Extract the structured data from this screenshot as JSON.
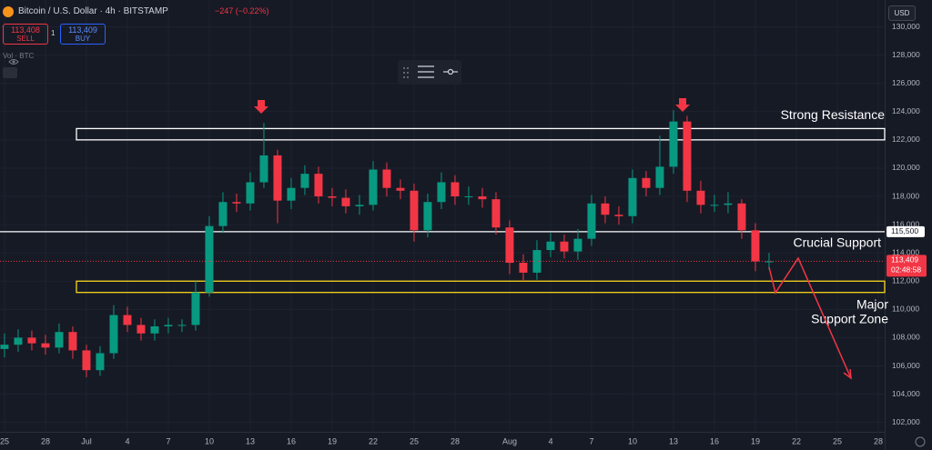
{
  "header": {
    "symbol": "Bitcoin / U.S. Dollar · 4h · BITSTAMP",
    "change": "−247 (−0.22%)",
    "sell_price": "113,408",
    "sell_label": "SELL",
    "spread": "1",
    "buy_price": "113,409",
    "buy_label": "BUY",
    "volume_label": "Vol · BTC",
    "currency": "USD"
  },
  "chart_data": {
    "type": "candlestick",
    "x": [
      0,
      1,
      2,
      3,
      4,
      5,
      6,
      7,
      8,
      9,
      10,
      11,
      12,
      13,
      14,
      15,
      16,
      17,
      18,
      19,
      20,
      21,
      22,
      23,
      24,
      25,
      26,
      27,
      28,
      29,
      30,
      31,
      32,
      33,
      34,
      35,
      36,
      37,
      38,
      39,
      40,
      41,
      42,
      43,
      44,
      45,
      46,
      47,
      48,
      49,
      50,
      51,
      52,
      53,
      54,
      55,
      56
    ],
    "open": [
      107200,
      107500,
      108000,
      107600,
      107300,
      108400,
      107100,
      105700,
      106900,
      109600,
      108900,
      108300,
      108800,
      108900,
      108900,
      111200,
      115900,
      117600,
      117500,
      119000,
      120900,
      117700,
      118600,
      119600,
      118000,
      117900,
      117300,
      117400,
      119900,
      118600,
      118400,
      115600,
      117600,
      119000,
      118000,
      118000,
      117800,
      115800,
      113300,
      112600,
      114200,
      114800,
      114100,
      115000,
      117500,
      116700,
      116600,
      119300,
      118600,
      120100,
      123300,
      118400,
      117400,
      117400,
      117500,
      115600,
      113400
    ],
    "high": [
      108300,
      108600,
      108500,
      108200,
      109000,
      108800,
      107500,
      107400,
      110300,
      110200,
      109400,
      109300,
      109400,
      109300,
      112000,
      116600,
      118300,
      118200,
      119700,
      123200,
      121300,
      119300,
      120200,
      120100,
      118600,
      118500,
      118100,
      120500,
      120400,
      119200,
      118900,
      118200,
      119700,
      119500,
      118700,
      118600,
      118300,
      116300,
      113900,
      114900,
      115400,
      115300,
      115700,
      118100,
      118000,
      117300,
      119900,
      119800,
      122300,
      124100,
      123700,
      119100,
      118100,
      118300,
      117800,
      116100,
      114000
    ],
    "low": [
      106600,
      107000,
      107100,
      106800,
      106900,
      106500,
      105200,
      105300,
      106500,
      108400,
      107800,
      107800,
      108300,
      108400,
      108500,
      110900,
      115400,
      116900,
      117000,
      118600,
      116100,
      117100,
      118100,
      117500,
      117300,
      116800,
      116700,
      117000,
      118000,
      117800,
      114800,
      115100,
      117100,
      117400,
      117400,
      117200,
      115300,
      112500,
      112000,
      112100,
      113700,
      113600,
      113500,
      114500,
      116100,
      116000,
      116100,
      118000,
      118100,
      119600,
      117600,
      116800,
      116900,
      116800,
      115000,
      112700,
      112800
    ],
    "close": [
      107500,
      108000,
      107600,
      107300,
      108400,
      107100,
      105700,
      106900,
      109600,
      108900,
      108300,
      108800,
      108900,
      108900,
      111200,
      115900,
      117600,
      117500,
      119000,
      120900,
      117700,
      118600,
      119600,
      118000,
      117900,
      117300,
      117400,
      119900,
      118600,
      118400,
      115600,
      117600,
      119000,
      118000,
      118000,
      117800,
      115800,
      113300,
      112600,
      114200,
      114800,
      114100,
      115000,
      117500,
      116700,
      116600,
      119300,
      118600,
      120100,
      123300,
      118400,
      117400,
      117400,
      117500,
      115600,
      113400,
      113400
    ],
    "up_color": "#089981",
    "down_color": "#f23645",
    "xlim": [
      -0.33,
      64.47
    ],
    "xticks": [
      {
        "value": 0,
        "label": "25"
      },
      {
        "value": 3,
        "label": "28"
      },
      {
        "value": 6,
        "label": "Jul"
      },
      {
        "value": 9,
        "label": "4"
      },
      {
        "value": 12,
        "label": "7"
      },
      {
        "value": 15,
        "label": "10"
      },
      {
        "value": 18,
        "label": "13"
      },
      {
        "value": 21,
        "label": "16"
      },
      {
        "value": 24,
        "label": "19"
      },
      {
        "value": 27,
        "label": "22"
      },
      {
        "value": 30,
        "label": "25"
      },
      {
        "value": 33,
        "label": "28"
      },
      {
        "value": 37,
        "label": "Aug"
      },
      {
        "value": 40,
        "label": "4"
      },
      {
        "value": 43,
        "label": "7"
      },
      {
        "value": 46,
        "label": "10"
      },
      {
        "value": 49,
        "label": "13"
      },
      {
        "value": 52,
        "label": "16"
      },
      {
        "value": 55,
        "label": "19"
      },
      {
        "value": 58,
        "label": "22"
      },
      {
        "value": 61,
        "label": "25"
      },
      {
        "value": 64,
        "label": "28"
      }
    ],
    "ylim": [
      101400,
      131900
    ],
    "yticks": [
      {
        "value": 102000,
        "label": "102,000"
      },
      {
        "value": 104000,
        "label": "104,000"
      },
      {
        "value": 106000,
        "label": "106,000"
      },
      {
        "value": 108000,
        "label": "108,000"
      },
      {
        "value": 110000,
        "label": "110,000"
      },
      {
        "value": 112000,
        "label": "112,000"
      },
      {
        "value": 114000,
        "label": "114,000"
      },
      {
        "value": 116000,
        "label": "116,000"
      },
      {
        "value": 118000,
        "label": "118,000"
      },
      {
        "value": 120000,
        "label": "120,000"
      },
      {
        "value": 122000,
        "label": "122,000"
      },
      {
        "value": 124000,
        "label": "124,000"
      },
      {
        "value": 126000,
        "label": "126,000"
      },
      {
        "value": 128000,
        "label": "128,000"
      },
      {
        "value": 130000,
        "label": "130,000"
      }
    ],
    "grid": true,
    "price_line": {
      "value": 113409,
      "label": "113,409",
      "countdown": "02:48:58"
    },
    "resistance": {
      "text": "Strong Resistance",
      "low": 122000,
      "high": 122800
    },
    "support": {
      "text": "Crucial Support",
      "value": 115500,
      "label": "115,500"
    },
    "support_zone": {
      "text_lines": [
        "Major",
        "Support Zone"
      ],
      "low": 111200,
      "high": 112000
    }
  }
}
